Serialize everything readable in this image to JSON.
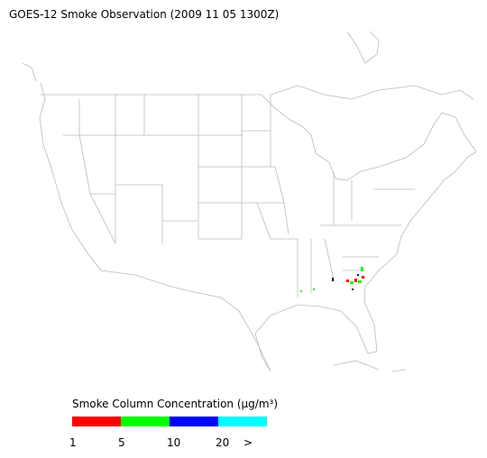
{
  "header": {
    "title": "GOES-12 Smoke Observation (2009 11 05  1300Z)"
  },
  "legend": {
    "title": "Smoke Column Concentration (μg/m³)",
    "colors": [
      "#ff0000",
      "#00ff00",
      "#0000ff",
      "#00ffff"
    ],
    "labels": [
      "1",
      "5",
      "10",
      "20",
      ">"
    ]
  }
}
